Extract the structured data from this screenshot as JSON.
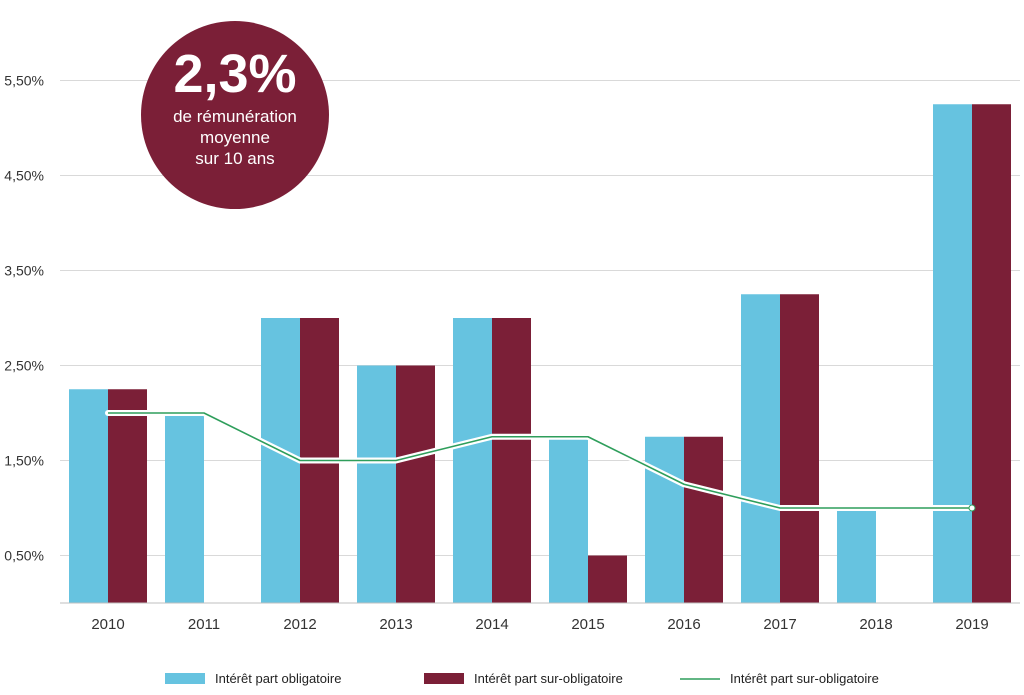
{
  "badge": {
    "value": "2,3%",
    "line1": "de rémunération",
    "line2": "moyenne",
    "line3": "sur 10 ans",
    "color": "#7b1f37"
  },
  "colors": {
    "series1": "#66c3e0",
    "series2": "#7b1f37",
    "line": "#2e9e5b",
    "grid": "#d9d9d9",
    "axis": "#bfbfbf"
  },
  "chart_data": {
    "type": "bar",
    "categories": [
      "2010",
      "2011",
      "2012",
      "2013",
      "2014",
      "2015",
      "2016",
      "2017",
      "2018",
      "2019"
    ],
    "series": [
      {
        "name": "Intérêt part obligatoire",
        "type": "bar",
        "values": [
          2.25,
          2.0,
          3.0,
          2.5,
          3.0,
          1.75,
          1.75,
          3.25,
          1.0,
          5.25
        ]
      },
      {
        "name": "Intérêt part sur-obligatoire",
        "type": "bar",
        "values": [
          2.25,
          0,
          3.0,
          2.5,
          3.0,
          0.5,
          1.75,
          3.25,
          0,
          5.25
        ]
      },
      {
        "name": "Intérêt part sur-obligatoire",
        "type": "line",
        "values": [
          2.0,
          2.0,
          1.5,
          1.5,
          1.75,
          1.75,
          1.25,
          1.0,
          1.0,
          1.0
        ]
      }
    ],
    "yticks": [
      "0,50%",
      "1,50%",
      "2,50%",
      "3,50%",
      "4,50%",
      "5,50%"
    ],
    "ytick_values": [
      0.5,
      1.5,
      2.5,
      3.5,
      4.5,
      5.5
    ],
    "ylim": [
      0,
      6.0
    ],
    "grid": true,
    "legend_position": "bottom"
  }
}
